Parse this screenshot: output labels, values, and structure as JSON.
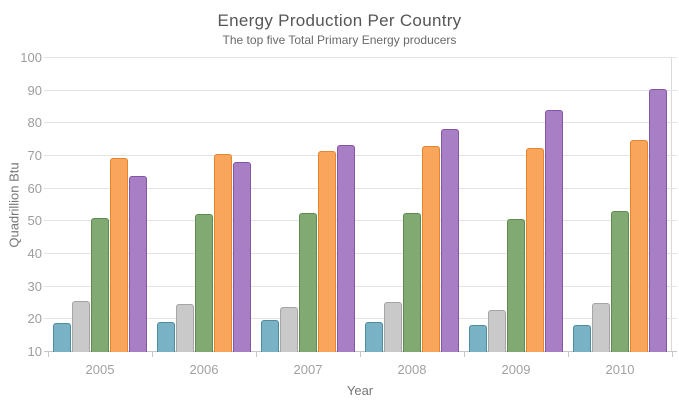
{
  "chart_data": {
    "type": "bar",
    "title": "Energy Production Per Country",
    "subtitle": "The top five Total Primary Energy producers",
    "xlabel": "Year",
    "ylabel": "Quadrillion Btu",
    "categories": [
      "2005",
      "2006",
      "2007",
      "2008",
      "2009",
      "2010"
    ],
    "series": [
      {
        "name": "series-1-blue",
        "color": "#79b2c4",
        "border_color": "#4e8ca3",
        "values": [
          19.0,
          19.3,
          19.7,
          19.2,
          18.4,
          18.4
        ]
      },
      {
        "name": "series-2-gray",
        "color": "#c9c9c9",
        "border_color": "#a5a5a5",
        "values": [
          25.5,
          24.7,
          23.8,
          25.4,
          22.9,
          24.9
        ]
      },
      {
        "name": "series-3-green",
        "color": "#80aa72",
        "border_color": "#5d8c4e",
        "values": [
          51.1,
          52.1,
          52.6,
          52.6,
          50.7,
          53.3
        ]
      },
      {
        "name": "series-4-orange",
        "color": "#faa55c",
        "border_color": "#e2872f",
        "values": [
          69.4,
          70.7,
          71.4,
          73.2,
          72.6,
          74.9
        ]
      },
      {
        "name": "series-5-purple",
        "color": "#a87ec4",
        "border_color": "#8355a8",
        "values": [
          63.9,
          68.2,
          73.3,
          78.4,
          84.2,
          90.5
        ]
      }
    ],
    "ylim": [
      10,
      100
    ],
    "yticks": [
      10,
      20,
      30,
      40,
      50,
      60,
      70,
      80,
      90,
      100
    ],
    "grid": true,
    "legend": "none",
    "colors": {
      "title_text": "#565656",
      "subtitle_text": "#696969",
      "axis_title_text": "#767676",
      "tick_label_text": "#9d9d9d",
      "gridline": "#e3e3e3",
      "axis_line": "#c6c6c6",
      "background": "#ffffff"
    }
  }
}
